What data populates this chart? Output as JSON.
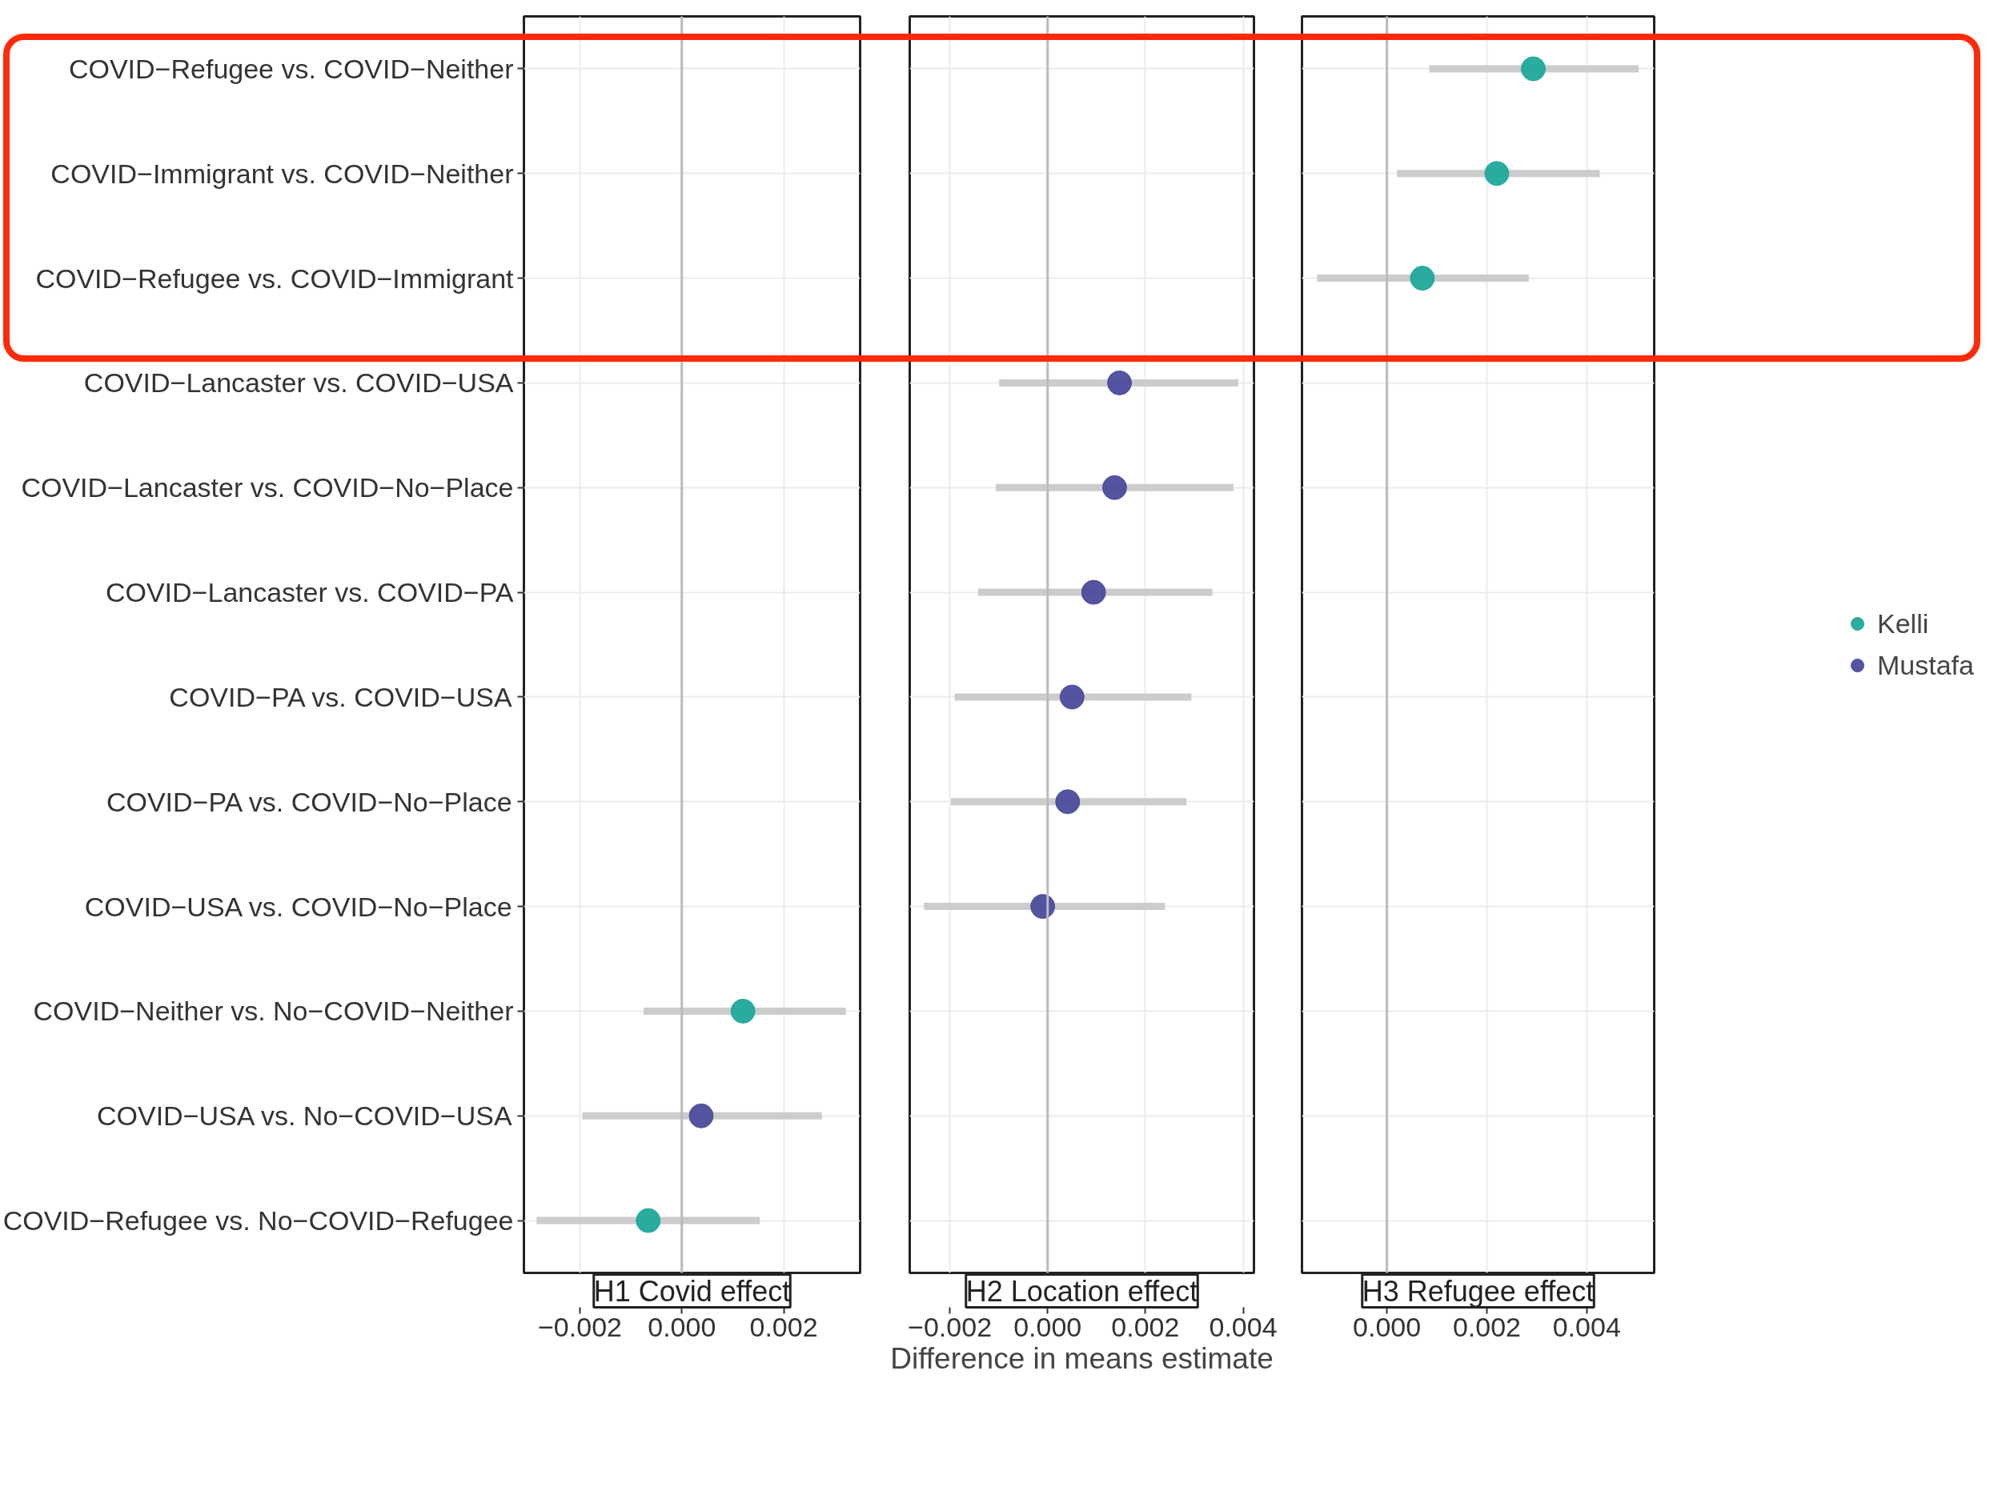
{
  "chart_data": [
    {
      "type": "scatter",
      "orientation": "horizontal",
      "title": "H1 Covid effect",
      "categories": [
        "COVID−Refugee vs. COVID−Neither",
        "COVID−Immigrant vs. COVID−Neither",
        "COVID−Refugee vs. COVID−Immigrant",
        "COVID−Lancaster vs. COVID−USA",
        "COVID−Lancaster vs. COVID−No−Place",
        "COVID−Lancaster vs. COVID−PA",
        "COVID−PA vs. COVID−USA",
        "COVID−PA vs. COVID−No−Place",
        "COVID−USA vs. COVID−No−Place",
        "COVID−Neither vs. No−COVID−Neither",
        "COVID−USA vs. No−COVID−USA",
        "COVID−Refugee vs. No−COVID−Refugee"
      ],
      "series": [
        {
          "color": "#1fa89a",
          "values": [
            null,
            null,
            null,
            null,
            null,
            null,
            null,
            null,
            null,
            0.0012,
            null,
            -0.00066
          ],
          "errors": [
            null,
            null,
            null,
            null,
            null,
            null,
            null,
            null,
            null,
            [
              -0.00075,
              0.00322
            ],
            null,
            [
              -0.00285,
              0.00153
            ]
          ]
        },
        {
          "color": "#4a4c9b",
          "values": [
            null,
            null,
            null,
            null,
            null,
            null,
            null,
            null,
            null,
            null,
            0.00038,
            null
          ],
          "errors": [
            null,
            null,
            null,
            null,
            null,
            null,
            null,
            null,
            null,
            null,
            [
              -0.00195,
              0.00275
            ],
            null
          ]
        }
      ],
      "xlim": [
        -0.0031,
        0.0035
      ],
      "xticks": [
        {
          "value": -0.002,
          "label": "−0.002"
        },
        {
          "value": 0,
          "label": "0.000"
        },
        {
          "value": 0.002,
          "label": "0.002"
        }
      ],
      "ref_lines": [
        {
          "axis": "x",
          "value": 0,
          "color": "#bbbbbb"
        }
      ],
      "grid": true,
      "marker": "circle",
      "legend": false
    },
    {
      "type": "scatter",
      "orientation": "horizontal",
      "title": "H2 Location effect",
      "xlabel": "Difference in means estimate",
      "series": [
        {
          "color": "#4a4c9b",
          "values": [
            null,
            null,
            null,
            0.00147,
            0.00137,
            0.00094,
            0.0005,
            0.00041,
            -0.0001,
            null,
            null,
            null
          ],
          "errors": [
            null,
            null,
            null,
            [
              -0.00099,
              0.0039
            ],
            [
              -0.00106,
              0.0038
            ],
            [
              -0.00142,
              0.00337
            ],
            [
              -0.0019,
              0.00294
            ],
            [
              -0.00198,
              0.00284
            ],
            [
              -0.00253,
              0.0024
            ],
            null,
            null,
            null
          ]
        }
      ],
      "xlim": [
        -0.00282,
        0.00422
      ],
      "xticks": [
        {
          "value": -0.002,
          "label": "−0.002"
        },
        {
          "value": 0,
          "label": "0.000"
        },
        {
          "value": 0.002,
          "label": "0.002"
        },
        {
          "value": 0.004,
          "label": "0.004"
        }
      ],
      "ref_lines": [
        {
          "axis": "x",
          "value": 0,
          "color": "#bbbbbb"
        }
      ],
      "grid": true,
      "marker": "circle",
      "legend": false,
      "tick_labels": "x"
    },
    {
      "type": "scatter",
      "orientation": "horizontal",
      "title": "H3 Refugee effect",
      "series": [
        {
          "name": "Kelli",
          "color": "#1fa89a",
          "values": [
            0.00293,
            0.0022,
            0.00071,
            null,
            null,
            null,
            null,
            null,
            null,
            null,
            null,
            null
          ],
          "errors": [
            [
              0.00085,
              0.00504
            ],
            [
              0.0002,
              0.00426
            ],
            [
              -0.0014,
              0.00284
            ],
            null,
            null,
            null,
            null,
            null,
            null,
            null,
            null,
            null
          ]
        },
        {
          "name": "Mustafa",
          "color": "#4a4c9b",
          "values": [
            null,
            null,
            null,
            null,
            null,
            null,
            null,
            null,
            null,
            null,
            null,
            null
          ]
        }
      ],
      "xlim": [
        -0.0017,
        0.00535
      ],
      "xticks": [
        {
          "value": 0,
          "label": "0.000"
        },
        {
          "value": 0.002,
          "label": "0.002"
        },
        {
          "value": 0.004,
          "label": "0.004"
        }
      ],
      "ref_lines": [
        {
          "axis": "x",
          "value": 0,
          "color": "#bbbbbb"
        }
      ],
      "grid": true,
      "marker": "circle",
      "legend": "right",
      "tick_labels": "x"
    }
  ]
}
